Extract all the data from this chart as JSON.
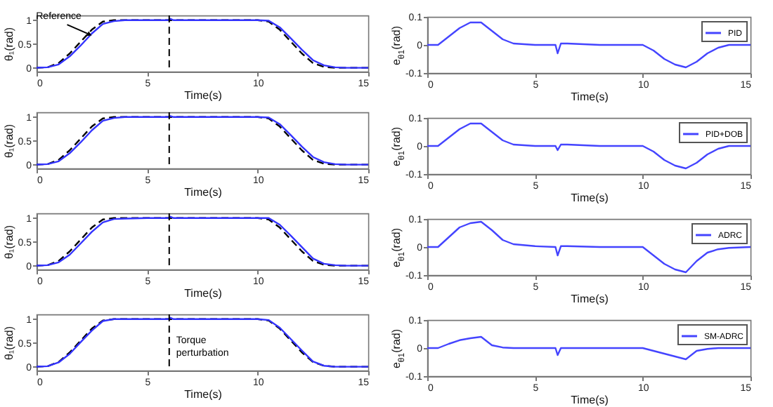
{
  "chart_data": [
    {
      "type": "line",
      "xlabel": "Time(s)",
      "ylabel": "θ₁(rad)",
      "x": [
        0,
        0.5,
        1,
        1.5,
        2,
        2.5,
        3,
        3.5,
        4,
        5,
        5.95,
        6.05,
        6.2,
        6.5,
        8,
        10,
        10.5,
        11,
        11.5,
        12,
        12.5,
        13,
        13.5,
        14,
        15
      ],
      "xlim": [
        0,
        15
      ],
      "xticks": [
        0,
        5,
        10,
        15
      ],
      "ylim": [
        -0.08,
        1.1
      ],
      "yticks": [
        0,
        0.5,
        1
      ],
      "legend": false,
      "series": [
        {
          "color": "#000000",
          "line_style": "dashed",
          "values": [
            0,
            0.01,
            0.1,
            0.3,
            0.55,
            0.8,
            0.97,
            1,
            1,
            1,
            1,
            1,
            1,
            1,
            1,
            1,
            0.97,
            0.8,
            0.55,
            0.3,
            0.1,
            0.02,
            0,
            0,
            0
          ]
        },
        {
          "color": "#3333ff",
          "line_style": "solid",
          "values": [
            0,
            0.01,
            0.07,
            0.24,
            0.47,
            0.72,
            0.92,
            0.98,
            1,
            1,
            1,
            1.03,
            1,
            1,
            1,
            1,
            0.99,
            0.85,
            0.62,
            0.38,
            0.16,
            0.05,
            0.01,
            0,
            0
          ]
        }
      ],
      "ref_lines": [
        {
          "axis": "x",
          "value": 6,
          "color": "#000000",
          "line_style": "dashed"
        }
      ],
      "annotations": [
        {
          "text": "Reference",
          "x": 2.4,
          "y": 0.7
        }
      ]
    },
    {
      "type": "line",
      "xlabel": "Time(s)",
      "ylabel": "e$_{θ1}$(rad)",
      "x": [
        0,
        0.5,
        1,
        1.5,
        2,
        2.5,
        3,
        3.5,
        4,
        5,
        5.95,
        6.05,
        6.2,
        6.5,
        8,
        10,
        10.5,
        11,
        11.5,
        12,
        12.5,
        13,
        13.5,
        14,
        15
      ],
      "xlim": [
        0,
        15
      ],
      "xticks": [
        0,
        5,
        10,
        15
      ],
      "ylim": [
        -0.1,
        0.1
      ],
      "yticks": [
        -0.1,
        0,
        0.1
      ],
      "legend": "top right",
      "series": [
        {
          "name": "PID",
          "color": "#4444ff",
          "line_style": "solid",
          "values": [
            0,
            0,
            0.03,
            0.06,
            0.08,
            0.08,
            0.05,
            0.02,
            0.005,
            0,
            0,
            -0.03,
            0.005,
            0.005,
            0,
            0,
            -0.02,
            -0.05,
            -0.07,
            -0.08,
            -0.06,
            -0.03,
            -0.01,
            0,
            0
          ]
        }
      ]
    },
    {
      "type": "line",
      "xlabel": "Time(s)",
      "ylabel": "θ₁(rad)",
      "x": [
        0,
        0.5,
        1,
        1.5,
        2,
        2.5,
        3,
        3.5,
        4,
        5,
        5.95,
        6.05,
        6.2,
        6.5,
        8,
        10,
        10.5,
        11,
        11.5,
        12,
        12.5,
        13,
        13.5,
        14,
        15
      ],
      "xlim": [
        0,
        15
      ],
      "xticks": [
        0,
        5,
        10,
        15
      ],
      "ylim": [
        -0.08,
        1.1
      ],
      "yticks": [
        0,
        0.5,
        1
      ],
      "legend": false,
      "series": [
        {
          "color": "#000000",
          "line_style": "dashed",
          "values": [
            0,
            0.01,
            0.1,
            0.3,
            0.55,
            0.8,
            0.97,
            1,
            1,
            1,
            1,
            1,
            1,
            1,
            1,
            1,
            0.97,
            0.8,
            0.55,
            0.3,
            0.1,
            0.02,
            0,
            0,
            0
          ]
        },
        {
          "color": "#3333ff",
          "line_style": "solid",
          "values": [
            0,
            0.01,
            0.07,
            0.24,
            0.47,
            0.72,
            0.92,
            0.98,
            1,
            1,
            1,
            1.02,
            1,
            1,
            1,
            1,
            0.99,
            0.85,
            0.62,
            0.38,
            0.16,
            0.05,
            0.01,
            0,
            0
          ]
        }
      ],
      "ref_lines": [
        {
          "axis": "x",
          "value": 6,
          "color": "#000000",
          "line_style": "dashed"
        }
      ]
    },
    {
      "type": "line",
      "xlabel": "Time(s)",
      "ylabel": "e$_{θ1}$(rad)",
      "x": [
        0,
        0.5,
        1,
        1.5,
        2,
        2.5,
        3,
        3.5,
        4,
        5,
        5.95,
        6.05,
        6.2,
        6.5,
        8,
        10,
        10.5,
        11,
        11.5,
        12,
        12.5,
        13,
        13.5,
        14,
        15
      ],
      "xlim": [
        0,
        15
      ],
      "xticks": [
        0,
        5,
        10,
        15
      ],
      "ylim": [
        -0.1,
        0.1
      ],
      "yticks": [
        -0.1,
        0,
        0.1
      ],
      "legend": "top right",
      "series": [
        {
          "name": "PID+DOB",
          "color": "#4444ff",
          "line_style": "solid",
          "values": [
            0,
            0,
            0.03,
            0.06,
            0.08,
            0.08,
            0.05,
            0.02,
            0.005,
            0,
            0,
            -0.015,
            0.005,
            0.005,
            0,
            0,
            -0.02,
            -0.05,
            -0.07,
            -0.08,
            -0.06,
            -0.03,
            -0.01,
            0,
            0
          ]
        }
      ]
    },
    {
      "type": "line",
      "xlabel": "Time(s)",
      "ylabel": "θ₁(rad)",
      "x": [
        0,
        0.5,
        1,
        1.5,
        2,
        2.5,
        3,
        3.5,
        4,
        5,
        5.95,
        6.05,
        6.2,
        6.5,
        8,
        10,
        10.5,
        11,
        11.5,
        12,
        12.5,
        13,
        13.5,
        14,
        15
      ],
      "xlim": [
        0,
        15
      ],
      "xticks": [
        0,
        5,
        10,
        15
      ],
      "ylim": [
        -0.08,
        1.1
      ],
      "yticks": [
        0,
        0.5,
        1
      ],
      "legend": false,
      "series": [
        {
          "color": "#000000",
          "line_style": "dashed",
          "values": [
            0,
            0.01,
            0.1,
            0.3,
            0.55,
            0.8,
            0.97,
            1,
            1,
            1,
            1,
            1,
            1,
            1,
            1,
            1,
            0.97,
            0.8,
            0.55,
            0.3,
            0.1,
            0.02,
            0,
            0,
            0
          ]
        },
        {
          "color": "#3333ff",
          "line_style": "solid",
          "values": [
            0,
            0.01,
            0.07,
            0.23,
            0.47,
            0.71,
            0.91,
            0.98,
            0.99,
            1,
            1,
            1.03,
            1,
            1,
            1,
            1,
            1,
            0.86,
            0.63,
            0.39,
            0.15,
            0.04,
            0.01,
            0,
            0
          ]
        }
      ],
      "ref_lines": [
        {
          "axis": "x",
          "value": 6,
          "color": "#000000",
          "line_style": "dashed"
        }
      ]
    },
    {
      "type": "line",
      "xlabel": "Time(s)",
      "ylabel": "e$_{θ1}$(rad)",
      "x": [
        0,
        0.5,
        1,
        1.5,
        2,
        2.5,
        3,
        3.5,
        4,
        5,
        5.95,
        6.05,
        6.2,
        6.5,
        8,
        10,
        10.5,
        11,
        11.5,
        12,
        12.5,
        13,
        13.5,
        14,
        15
      ],
      "xlim": [
        0,
        15
      ],
      "xticks": [
        0,
        5,
        10,
        15
      ],
      "ylim": [
        -0.1,
        0.1
      ],
      "yticks": [
        -0.1,
        0,
        0.1
      ],
      "legend": "top right",
      "series": [
        {
          "name": "ADRC",
          "color": "#4444ff",
          "line_style": "solid",
          "values": [
            0,
            0,
            0.035,
            0.07,
            0.085,
            0.09,
            0.06,
            0.025,
            0.01,
            0.003,
            0,
            -0.03,
            0.003,
            0.003,
            0,
            0,
            -0.03,
            -0.06,
            -0.08,
            -0.09,
            -0.05,
            -0.02,
            -0.008,
            -0.003,
            0
          ]
        }
      ]
    },
    {
      "type": "line",
      "xlabel": "Time(s)",
      "ylabel": "θ₁(rad)",
      "x": [
        0,
        0.5,
        1,
        1.5,
        2,
        2.5,
        3,
        3.5,
        4,
        5,
        5.95,
        6.05,
        6.2,
        6.5,
        8,
        10,
        10.5,
        11,
        11.5,
        12,
        12.5,
        13,
        13.5,
        14,
        15
      ],
      "xlim": [
        0,
        15
      ],
      "xticks": [
        0,
        5,
        10,
        15
      ],
      "ylim": [
        -0.08,
        1.1
      ],
      "yticks": [
        0,
        0.5,
        1
      ],
      "legend": false,
      "series": [
        {
          "color": "#000000",
          "line_style": "dashed",
          "values": [
            0,
            0.01,
            0.1,
            0.3,
            0.55,
            0.8,
            0.97,
            1,
            1,
            1,
            1,
            1,
            1,
            1,
            1,
            1,
            0.97,
            0.8,
            0.55,
            0.3,
            0.1,
            0.02,
            0,
            0,
            0
          ]
        },
        {
          "color": "#3333ff",
          "line_style": "solid",
          "values": [
            0,
            0.01,
            0.09,
            0.27,
            0.52,
            0.76,
            0.96,
            1,
            1,
            1,
            1,
            1.03,
            1,
            1,
            1,
            1,
            0.98,
            0.82,
            0.58,
            0.34,
            0.11,
            0.02,
            0,
            0,
            0
          ]
        }
      ],
      "ref_lines": [
        {
          "axis": "x",
          "value": 6,
          "color": "#000000",
          "line_style": "dashed"
        }
      ],
      "annotations": [
        {
          "text": "Torque perturbation",
          "x": 6,
          "y": 0.55
        }
      ]
    },
    {
      "type": "line",
      "xlabel": "Time(s)",
      "ylabel": "e$_{θ1}$(rad)",
      "x": [
        0,
        0.5,
        1,
        1.5,
        2,
        2.5,
        3,
        3.5,
        4,
        5,
        5.95,
        6.05,
        6.2,
        6.5,
        8,
        10,
        10.5,
        11,
        11.5,
        12,
        12.5,
        13,
        13.5,
        14,
        15
      ],
      "xlim": [
        0,
        15
      ],
      "xticks": [
        0,
        5,
        10,
        15
      ],
      "ylim": [
        -0.1,
        0.1
      ],
      "yticks": [
        -0.1,
        0,
        0.1
      ],
      "legend": "top right",
      "series": [
        {
          "name": "SM-ADRC",
          "color": "#4444ff",
          "line_style": "solid",
          "values": [
            0,
            0,
            0.015,
            0.028,
            0.035,
            0.04,
            0.01,
            0.002,
            0,
            0,
            0,
            -0.025,
            0,
            0,
            0,
            0,
            -0.01,
            -0.02,
            -0.03,
            -0.04,
            -0.01,
            -0.003,
            0,
            0,
            0
          ]
        }
      ]
    }
  ]
}
